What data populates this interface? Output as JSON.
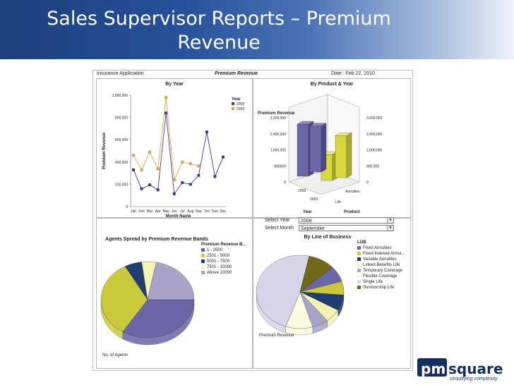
{
  "slide": {
    "title": "Sales Supervisor Reports – Premium Revenue",
    "colors": {
      "band_dark": "#1d3f7c",
      "band_light": "#eef2f9",
      "series_2008": "#3b3a8f",
      "series_2009": "#d4a347"
    }
  },
  "dashboard": {
    "app_label": "Insurance Application",
    "report_name": "Premium Revenue",
    "date_label": "Date : Feb 22, 2010"
  },
  "by_year": {
    "title": "By Year",
    "ylabel": "Premium Revenue",
    "xlabel": "Month Name",
    "legend_title": "Year",
    "yticks": [
      "1,000,000",
      "800,000",
      "600,000",
      "400,000",
      "200,000",
      "0"
    ],
    "chart_data": {
      "type": "line",
      "categories": [
        "Jan",
        "Feb",
        "Mar",
        "Apr",
        "May",
        "Jun",
        "Jul",
        "Aug",
        "Sep",
        "Oct",
        "Nov",
        "Dec"
      ],
      "ylim": [
        0,
        1000000
      ],
      "series": [
        {
          "name": "2008",
          "color": "#3b3a8f",
          "values": [
            330000,
            160000,
            195000,
            150000,
            840000,
            115000,
            215000,
            200000,
            280000,
            670000,
            270000,
            445000
          ]
        },
        {
          "name": "2009",
          "color": "#d4a347",
          "values": [
            460000,
            330000,
            490000,
            340000,
            980000,
            240000,
            400000,
            385000,
            365000,
            null,
            null,
            null
          ]
        }
      ]
    }
  },
  "by_product": {
    "title": "By Product & Year",
    "ylabel": "Premium Revenue",
    "left_ticks": [
      "3,200,000",
      "2,400,000",
      "1,600,000",
      "800000",
      "0"
    ],
    "right_ticks": [
      "3,200,000",
      "2,400,000",
      "1,600,000",
      "800,000",
      "0"
    ],
    "years": [
      "2008",
      "2009"
    ],
    "products": [
      "Annuities",
      "Life"
    ],
    "axis_year": "Year",
    "axis_product": "Product",
    "chart_data": {
      "type": "bar",
      "categories": [
        "2008",
        "2009"
      ],
      "series": [
        {
          "name": "Annuities",
          "values": [
            2600000,
            1300000
          ]
        },
        {
          "name": "Life",
          "values": [
            2300000,
            2100000
          ]
        }
      ]
    }
  },
  "filters": {
    "year_label": "Select Year",
    "year_value": "2008",
    "month_label": "Select Month",
    "month_value": "September"
  },
  "agents_spread": {
    "title": "Agents Spread by Premium Revenue Bands",
    "legend_title": "Premium Revenue B...",
    "caption": "No. of Agents",
    "chart_data": {
      "type": "pie",
      "labels": [
        "1 - 2500",
        "2501 - 5000",
        "5001 - 7500",
        "7501 - 10000",
        "Above 10000"
      ],
      "values": [
        34,
        33,
        6,
        5,
        22
      ],
      "colors": [
        "#6b66a6",
        "#c9c93b",
        "#1f3d70",
        "#f4f3b3",
        "#a7a4c8"
      ]
    }
  },
  "by_lob": {
    "title": "By Line of Business",
    "legend_title": "LOB",
    "caption": "Premium Revenue",
    "chart_data": {
      "type": "pie",
      "labels": [
        "Fixed Annuities",
        "Fixed Indexed Annui...",
        "Variable Annuities",
        "Linked Benefits Life",
        "Temporary Coverage",
        "Flexible Coverage",
        "Single Life",
        "Survivorship Life"
      ],
      "values": [
        7,
        6,
        7,
        6,
        6,
        10,
        48,
        10
      ],
      "colors": [
        "#6b66a6",
        "#c9c93b",
        "#1f3d70",
        "#f4f3b3",
        "#a7a4c8",
        "#fbfbe0",
        "#d6d5ea",
        "#6e6a1a"
      ]
    }
  },
  "logo": {
    "brand_pm": "pm",
    "brand_rest": "square",
    "tagline": "simplifying complexity"
  }
}
